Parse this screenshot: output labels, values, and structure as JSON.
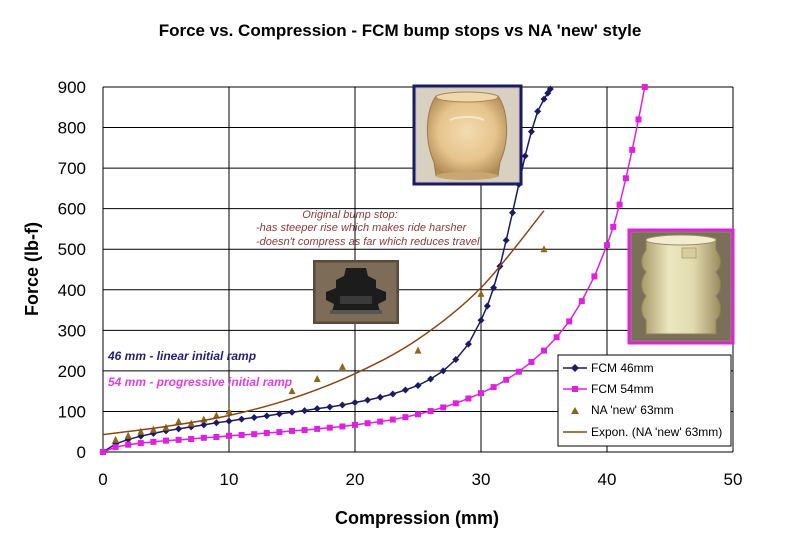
{
  "chart_data": {
    "type": "scatter",
    "title": "Force vs. Compression - FCM bump stops vs NA 'new' style",
    "xlabel": "Compression (mm)",
    "ylabel": "Force (lb-f)",
    "xlim": [
      0,
      50
    ],
    "ylim": [
      0,
      900
    ],
    "xticks": [
      0,
      10,
      20,
      30,
      40,
      50
    ],
    "yticks": [
      0,
      100,
      200,
      300,
      400,
      500,
      600,
      700,
      800,
      900
    ],
    "grid": true,
    "legend_position": "bottom-right",
    "series": [
      {
        "name": "FCM 46mm",
        "color": "#1a1a66",
        "marker": "diamond",
        "line": true,
        "x": [
          0,
          1,
          2,
          3,
          4,
          5,
          6,
          7,
          8,
          9,
          10,
          11,
          12,
          13,
          14,
          15,
          16,
          17,
          18,
          19,
          20,
          21,
          22,
          23,
          24,
          25,
          26,
          27,
          28,
          29,
          30,
          30.5,
          31,
          31.5,
          32,
          32.5,
          33,
          33.5,
          34,
          34.5,
          35,
          35.3,
          35.5
        ],
        "y": [
          0,
          20,
          31,
          39,
          46,
          52,
          57,
          62,
          67,
          72,
          76,
          81,
          85,
          89,
          94,
          98,
          102,
          107,
          111,
          116,
          122,
          128,
          135,
          143,
          153,
          164,
          180,
          200,
          228,
          266,
          325,
          360,
          405,
          458,
          522,
          590,
          660,
          730,
          790,
          840,
          870,
          885,
          895
        ]
      },
      {
        "name": "FCM 54mm",
        "color": "#e020e0",
        "marker": "square",
        "line": true,
        "x": [
          0,
          1,
          2,
          3,
          4,
          5,
          6,
          7,
          8,
          9,
          10,
          11,
          12,
          13,
          14,
          15,
          16,
          17,
          18,
          19,
          20,
          21,
          22,
          23,
          24,
          25,
          26,
          27,
          28,
          29,
          30,
          31,
          32,
          33,
          34,
          35,
          36,
          37,
          38,
          39,
          40,
          40.5,
          41,
          41.5,
          42,
          42.5,
          43
        ],
        "y": [
          0,
          12,
          18,
          22,
          25,
          28,
          30,
          32,
          35,
          37,
          40,
          42,
          44,
          47,
          49,
          52,
          54,
          57,
          60,
          63,
          67,
          71,
          75,
          80,
          86,
          93,
          101,
          110,
          120,
          132,
          145,
          160,
          178,
          198,
          222,
          250,
          283,
          322,
          372,
          433,
          510,
          555,
          610,
          675,
          745,
          820,
          900
        ]
      },
      {
        "name": "NA 'new' 63mm",
        "color": "#8b6914",
        "marker": "triangle",
        "line": false,
        "x": [
          1,
          2,
          3,
          4,
          5,
          6,
          7,
          8,
          9,
          10,
          15,
          17,
          19,
          25,
          30,
          35
        ],
        "y": [
          30,
          40,
          50,
          55,
          60,
          75,
          70,
          80,
          90,
          100,
          150,
          180,
          210,
          250,
          390,
          500
        ]
      },
      {
        "name": "Expon. (NA 'new' 63mm)",
        "color": "#8b4513",
        "marker": "none",
        "line": true,
        "trendline": "exponential",
        "x": [
          0,
          5,
          10,
          15,
          20,
          25,
          30,
          35
        ],
        "y": [
          43,
          63,
          90,
          132,
          193,
          278,
          405,
          595
        ]
      }
    ],
    "annotations": {
      "original": {
        "lines": [
          "Original bump stop:",
          "-has steeper rise which makes ride harsher",
          "-doesn't compress as far which reduces travel"
        ]
      },
      "linear": "46 mm - linear initial ramp",
      "progressive": "54 mm - progressive initial ramp"
    }
  }
}
